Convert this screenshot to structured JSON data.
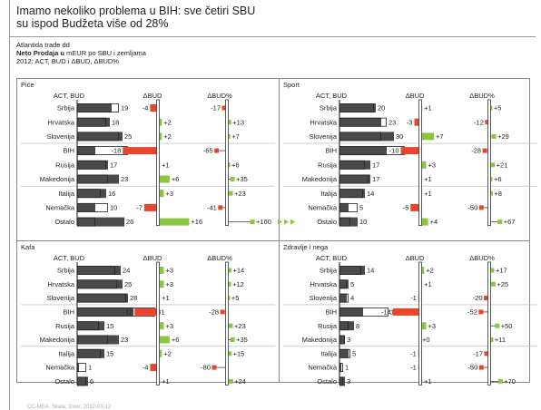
{
  "title_line1": "Imamo nekoliko problema u BIH: sve četiri SBU",
  "title_line2": "su ispod Budžeta više od 28%",
  "subtitle": {
    "company": "Atlantida trade dd",
    "measure_bold": "Neto Prodaja u",
    "measure_rest": " mEUR po SBU i zemljama",
    "period": "2012: ACT, BUD i ΔBUD, ΔBUD%"
  },
  "footer": "CC-MEA, Skala, Izvor: 2012-01-12",
  "chart_data": [
    {
      "type": "bar",
      "title": "Piće",
      "column_headers": [
        "ACT, BUD",
        "ΔBUD",
        "ΔBUD%"
      ],
      "categories": [
        "Srbija",
        "Hrvatska",
        "Slovenija",
        "BIH",
        "Rusija",
        "Makedonija",
        "Italija",
        "Nemačka",
        "Ostalo"
      ],
      "act": [
        19,
        18,
        25,
        10,
        17,
        23,
        16,
        10,
        26
      ],
      "bud": [
        23,
        16,
        23,
        28,
        16,
        17,
        13,
        17,
        10
      ],
      "delta": [
        -4,
        2,
        2,
        -18,
        1,
        6,
        3,
        -7,
        16
      ],
      "delta_labels": [
        "-4",
        "+2",
        "+2",
        "-18",
        "+1",
        "+6",
        "+3",
        "-7",
        "+16"
      ],
      "delta_pct": [
        -17,
        13,
        7,
        -65,
        6,
        35,
        23,
        -41,
        160
      ],
      "delta_pct_labels": [
        "-17",
        "+13",
        "+7",
        "-65",
        "+6",
        "+35",
        "+23",
        "-41",
        "+160"
      ],
      "value_labels": [
        "19",
        "18",
        "25",
        "10",
        "17",
        "23",
        "16",
        "10",
        "26"
      ],
      "pct_overflow": [
        false,
        false,
        false,
        false,
        false,
        false,
        false,
        false,
        true
      ]
    },
    {
      "type": "bar",
      "title": "Sport",
      "column_headers": [
        "ACT, BUD",
        "ΔBUD",
        "ΔBUD%"
      ],
      "categories": [
        "Srbija",
        "Hrvatska",
        "Slovenija",
        "BIH",
        "Rusija",
        "Makedonija",
        "Italija",
        "Nemačka",
        "Ostalo"
      ],
      "act": [
        20,
        23,
        30,
        26,
        17,
        17,
        14,
        5,
        10
      ],
      "bud": [
        19,
        26,
        23,
        36,
        14,
        16,
        13,
        10,
        6
      ],
      "delta": [
        1,
        -3,
        7,
        -10,
        3,
        1,
        1,
        -5,
        4
      ],
      "delta_labels": [
        "+1",
        "-3",
        "+7",
        "-10",
        "+3",
        "+1",
        "+1",
        "-5",
        "+4"
      ],
      "delta_pct": [
        5,
        -12,
        29,
        -28,
        21,
        6,
        8,
        -50,
        67
      ],
      "delta_pct_labels": [
        "+5",
        "-12",
        "+29",
        "-28",
        "+21",
        "+6",
        "+8",
        "-50",
        "+67"
      ],
      "value_labels": [
        "20",
        "23",
        "30",
        "26",
        "17",
        "17",
        "14",
        "5",
        "10"
      ],
      "pct_overflow": [
        false,
        false,
        false,
        false,
        false,
        false,
        false,
        false,
        false
      ]
    },
    {
      "type": "bar",
      "title": "Kafa",
      "column_headers": [
        "ACT, BUD",
        "ΔBUD",
        "ΔBUD%"
      ],
      "categories": [
        "Srbija",
        "Hrvatska",
        "Slovenija",
        "BIH",
        "Rusija",
        "Makedonija",
        "Italija",
        "Nemačka",
        "Ostalo"
      ],
      "act": [
        24,
        25,
        28,
        31,
        15,
        23,
        15,
        1,
        6
      ],
      "bud": [
        21,
        22,
        27,
        43,
        12,
        17,
        13,
        5,
        5
      ],
      "delta": [
        3,
        3,
        1,
        -12,
        3,
        6,
        2,
        -4,
        1
      ],
      "delta_labels": [
        "+3",
        "+3",
        "+1",
        "-12",
        "+3",
        "+6",
        "+2",
        "-4",
        "+1"
      ],
      "delta_pct": [
        14,
        12,
        5,
        -28,
        23,
        35,
        15,
        -80,
        24
      ],
      "delta_pct_labels": [
        "+14",
        "+12",
        "+5",
        "-28",
        "+23",
        "+35",
        "+15",
        "-80",
        "+24"
      ],
      "value_labels": [
        "24",
        "25",
        "28",
        "31",
        "15",
        "23",
        "15",
        "1",
        "6"
      ],
      "pct_overflow": [
        false,
        false,
        false,
        false,
        false,
        false,
        false,
        false,
        false
      ]
    },
    {
      "type": "bar",
      "title": "Zdravlje i nega",
      "column_headers": [
        "ACT, BUD",
        "ΔBUD",
        "ΔBUD%"
      ],
      "categories": [
        "Srbija",
        "Hrvatska",
        "Slovenija",
        "BIH",
        "Rusija",
        "Makedonija",
        "Italija",
        "Nemačka",
        "Ostalo"
      ],
      "act": [
        14,
        5,
        4,
        13,
        8,
        3,
        5,
        1,
        3
      ],
      "bud": [
        12,
        4,
        5,
        27,
        5,
        3,
        6,
        2,
        2
      ],
      "delta": [
        2,
        1,
        -1,
        -14,
        3,
        0,
        -1,
        -1,
        1
      ],
      "delta_labels": [
        "+2",
        "+1",
        "-1",
        "-14",
        "+3",
        "+0",
        "-1",
        "-1",
        "+1"
      ],
      "delta_pct": [
        17,
        25,
        -20,
        -52,
        50,
        11,
        -17,
        -50,
        70
      ],
      "delta_pct_labels": [
        "+17",
        "+25",
        "-20",
        "-52",
        "+50",
        "+11",
        "-17",
        "-50",
        "+70"
      ],
      "value_labels": [
        "14",
        "5",
        "4",
        "13",
        "8",
        "3",
        "5",
        "1",
        "3"
      ],
      "pct_overflow": [
        false,
        false,
        false,
        false,
        false,
        false,
        false,
        false,
        false
      ]
    }
  ],
  "colors": {
    "act": "#4a4a4a",
    "positive": "#8cc63f",
    "negative": "#e8452c",
    "axis": "#333333"
  }
}
